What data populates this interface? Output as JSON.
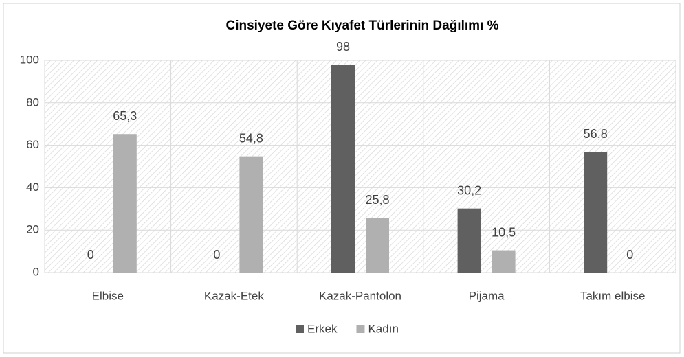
{
  "chart_data": {
    "type": "bar",
    "title": "Cinsiyete Göre Kıyafet Türlerinin Dağılımı %",
    "categories": [
      "Elbise",
      "Kazak-Etek",
      "Kazak-Pantolon",
      "Pijama",
      "Takım elbise"
    ],
    "series": [
      {
        "name": "Erkek",
        "color": "#606060",
        "values": [
          0,
          0,
          98,
          30.2,
          56.8
        ],
        "value_labels": [
          "0",
          "0",
          "98",
          "30,2",
          "56,8"
        ]
      },
      {
        "name": "Kadın",
        "color": "#b0b0b0",
        "values": [
          65.3,
          54.8,
          25.8,
          10.5,
          0
        ],
        "value_labels": [
          "65,3",
          "54,8",
          "25,8",
          "10,5",
          "0"
        ]
      }
    ],
    "ylim": [
      0,
      100
    ],
    "yticks": [
      0,
      20,
      40,
      60,
      80,
      100
    ],
    "grid": true,
    "legend": "bottom"
  }
}
